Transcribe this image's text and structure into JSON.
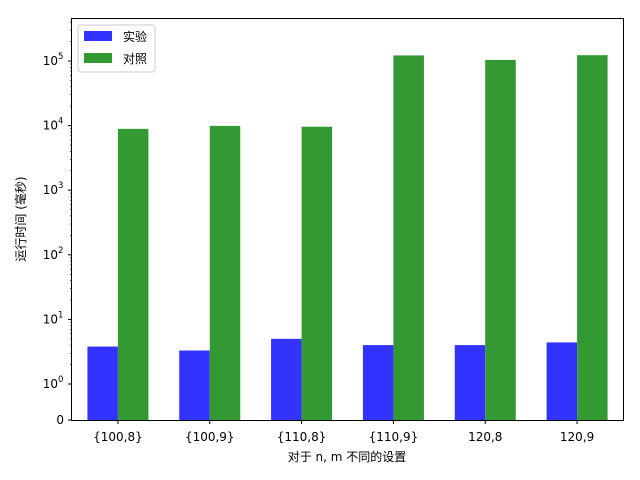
{
  "chart_data": {
    "type": "bar",
    "xlabel": "对于 n, m 不同的设置",
    "ylabel": "运行时间 (毫秒)",
    "yscale": "symlog",
    "categories": [
      "{100,8}",
      "{100,9}",
      "{110,8}",
      "{110,9}",
      "120,8",
      "120,9"
    ],
    "series": [
      {
        "name": "实验",
        "color": "#3333ff",
        "values": [
          3.8,
          3.3,
          5.0,
          4.0,
          4.0,
          4.4
        ]
      },
      {
        "name": "对照",
        "color": "#339933",
        "values": [
          8900,
          9900,
          9600,
          122000,
          104000,
          123000
        ]
      }
    ],
    "yticks": [
      {
        "value": 0,
        "base": "0",
        "exp": ""
      },
      {
        "value": 1,
        "base": "10",
        "exp": "0"
      },
      {
        "value": 10,
        "base": "10",
        "exp": "1"
      },
      {
        "value": 100,
        "base": "10",
        "exp": "2"
      },
      {
        "value": 1000,
        "base": "10",
        "exp": "3"
      },
      {
        "value": 10000,
        "base": "10",
        "exp": "4"
      },
      {
        "value": 100000,
        "base": "10",
        "exp": "5"
      }
    ],
    "ylim": [
      0,
      200000
    ],
    "legend": "top-left",
    "grid": false
  }
}
